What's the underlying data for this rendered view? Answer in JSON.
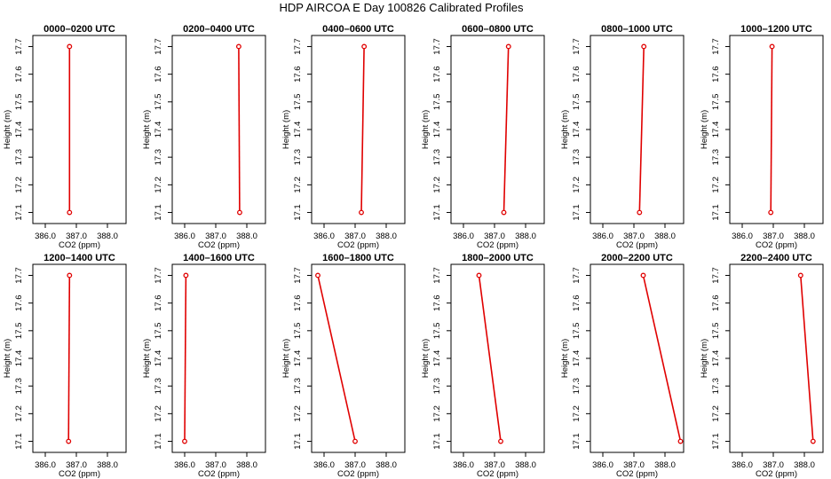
{
  "figure_title": "HDP AIRCOA E  Day 100826  Calibrated Profiles",
  "chart_data": [
    {
      "type": "line",
      "title": "0000–0200 UTC",
      "xlabel": "CO2 (ppm)",
      "ylabel": "Height (m)",
      "x": [
        386.78,
        386.78
      ],
      "y": [
        17.1,
        17.7
      ],
      "xlim": [
        385.6,
        388.6
      ],
      "ylim": [
        17.06,
        17.74
      ],
      "xticks": [
        "386.0",
        "387.0",
        "388.0"
      ],
      "yticks": [
        "17.1",
        "17.2",
        "17.3",
        "17.4",
        "17.5",
        "17.6",
        "17.7"
      ]
    },
    {
      "type": "line",
      "title": "0200–0400 UTC",
      "xlabel": "CO2 (ppm)",
      "ylabel": "Height (m)",
      "x": [
        387.77,
        387.74
      ],
      "y": [
        17.1,
        17.7
      ],
      "xlim": [
        385.6,
        388.6
      ],
      "ylim": [
        17.06,
        17.74
      ],
      "xticks": [
        "386.0",
        "387.0",
        "388.0"
      ],
      "yticks": [
        "17.1",
        "17.2",
        "17.3",
        "17.4",
        "17.5",
        "17.6",
        "17.7"
      ]
    },
    {
      "type": "line",
      "title": "0400–0600 UTC",
      "xlabel": "CO2 (ppm)",
      "ylabel": "Height (m)",
      "x": [
        387.2,
        387.29
      ],
      "y": [
        17.1,
        17.7
      ],
      "xlim": [
        385.6,
        388.6
      ],
      "ylim": [
        17.06,
        17.74
      ],
      "xticks": [
        "386.0",
        "387.0",
        "388.0"
      ],
      "yticks": [
        "17.1",
        "17.2",
        "17.3",
        "17.4",
        "17.5",
        "17.6",
        "17.7"
      ]
    },
    {
      "type": "line",
      "title": "0600–0800 UTC",
      "xlabel": "CO2 (ppm)",
      "ylabel": "Height (m)",
      "x": [
        387.3,
        387.45
      ],
      "y": [
        17.1,
        17.7
      ],
      "xlim": [
        385.6,
        388.6
      ],
      "ylim": [
        17.06,
        17.74
      ],
      "xticks": [
        "386.0",
        "387.0",
        "388.0"
      ],
      "yticks": [
        "17.1",
        "17.2",
        "17.3",
        "17.4",
        "17.5",
        "17.6",
        "17.7"
      ]
    },
    {
      "type": "line",
      "title": "0800–1000 UTC",
      "xlabel": "CO2 (ppm)",
      "ylabel": "Height (m)",
      "x": [
        387.18,
        387.32
      ],
      "y": [
        17.1,
        17.7
      ],
      "xlim": [
        385.6,
        388.6
      ],
      "ylim": [
        17.06,
        17.74
      ],
      "xticks": [
        "386.0",
        "387.0",
        "388.0"
      ],
      "yticks": [
        "17.1",
        "17.2",
        "17.3",
        "17.4",
        "17.5",
        "17.6",
        "17.7"
      ]
    },
    {
      "type": "line",
      "title": "1000–1200 UTC",
      "xlabel": "CO2 (ppm)",
      "ylabel": "Height (m)",
      "x": [
        386.92,
        386.96
      ],
      "y": [
        17.1,
        17.7
      ],
      "xlim": [
        385.6,
        388.6
      ],
      "ylim": [
        17.06,
        17.74
      ],
      "xticks": [
        "386.0",
        "387.0",
        "388.0"
      ],
      "yticks": [
        "17.1",
        "17.2",
        "17.3",
        "17.4",
        "17.5",
        "17.6",
        "17.7"
      ]
    },
    {
      "type": "line",
      "title": "1200–1400 UTC",
      "xlabel": "CO2 (ppm)",
      "ylabel": "Height (m)",
      "x": [
        386.75,
        386.78
      ],
      "y": [
        17.1,
        17.7
      ],
      "xlim": [
        385.6,
        388.6
      ],
      "ylim": [
        17.06,
        17.74
      ],
      "xticks": [
        "386.0",
        "387.0",
        "388.0"
      ],
      "yticks": [
        "17.1",
        "17.2",
        "17.3",
        "17.4",
        "17.5",
        "17.6",
        "17.7"
      ]
    },
    {
      "type": "line",
      "title": "1400–1600 UTC",
      "xlabel": "CO2 (ppm)",
      "ylabel": "Height (m)",
      "x": [
        386.0,
        386.04
      ],
      "y": [
        17.1,
        17.7
      ],
      "xlim": [
        385.6,
        388.6
      ],
      "ylim": [
        17.06,
        17.74
      ],
      "xticks": [
        "386.0",
        "387.0",
        "388.0"
      ],
      "yticks": [
        "17.1",
        "17.2",
        "17.3",
        "17.4",
        "17.5",
        "17.6",
        "17.7"
      ]
    },
    {
      "type": "line",
      "title": "1600–1800 UTC",
      "xlabel": "CO2 (ppm)",
      "ylabel": "Height (m)",
      "x": [
        387.0,
        385.8
      ],
      "y": [
        17.1,
        17.7
      ],
      "xlim": [
        385.6,
        388.6
      ],
      "ylim": [
        17.06,
        17.74
      ],
      "xticks": [
        "386.0",
        "387.0",
        "388.0"
      ],
      "yticks": [
        "17.1",
        "17.2",
        "17.3",
        "17.4",
        "17.5",
        "17.6",
        "17.7"
      ]
    },
    {
      "type": "line",
      "title": "1800–2000 UTC",
      "xlabel": "CO2 (ppm)",
      "ylabel": "Height (m)",
      "x": [
        387.2,
        386.5
      ],
      "y": [
        17.1,
        17.7
      ],
      "xlim": [
        385.6,
        388.6
      ],
      "ylim": [
        17.06,
        17.74
      ],
      "xticks": [
        "386.0",
        "387.0",
        "388.0"
      ],
      "yticks": [
        "17.1",
        "17.2",
        "17.3",
        "17.4",
        "17.5",
        "17.6",
        "17.7"
      ]
    },
    {
      "type": "line",
      "title": "2000–2200 UTC",
      "xlabel": "CO2 (ppm)",
      "ylabel": "Height (m)",
      "x": [
        388.5,
        387.3
      ],
      "y": [
        17.1,
        17.7
      ],
      "xlim": [
        385.6,
        388.6
      ],
      "ylim": [
        17.06,
        17.74
      ],
      "xticks": [
        "386.0",
        "387.0",
        "388.0"
      ],
      "yticks": [
        "17.1",
        "17.2",
        "17.3",
        "17.4",
        "17.5",
        "17.6",
        "17.7"
      ]
    },
    {
      "type": "line",
      "title": "2200–2400 UTC",
      "xlabel": "CO2 (ppm)",
      "ylabel": "Height (m)",
      "x": [
        388.28,
        387.88
      ],
      "y": [
        17.1,
        17.7
      ],
      "xlim": [
        385.6,
        388.6
      ],
      "ylim": [
        17.06,
        17.74
      ],
      "xticks": [
        "386.0",
        "387.0",
        "388.0"
      ],
      "yticks": [
        "17.1",
        "17.2",
        "17.3",
        "17.4",
        "17.5",
        "17.6",
        "17.7"
      ]
    }
  ],
  "colors": {
    "profile": "#e00000",
    "axes": "#000000",
    "background": "#ffffff"
  }
}
